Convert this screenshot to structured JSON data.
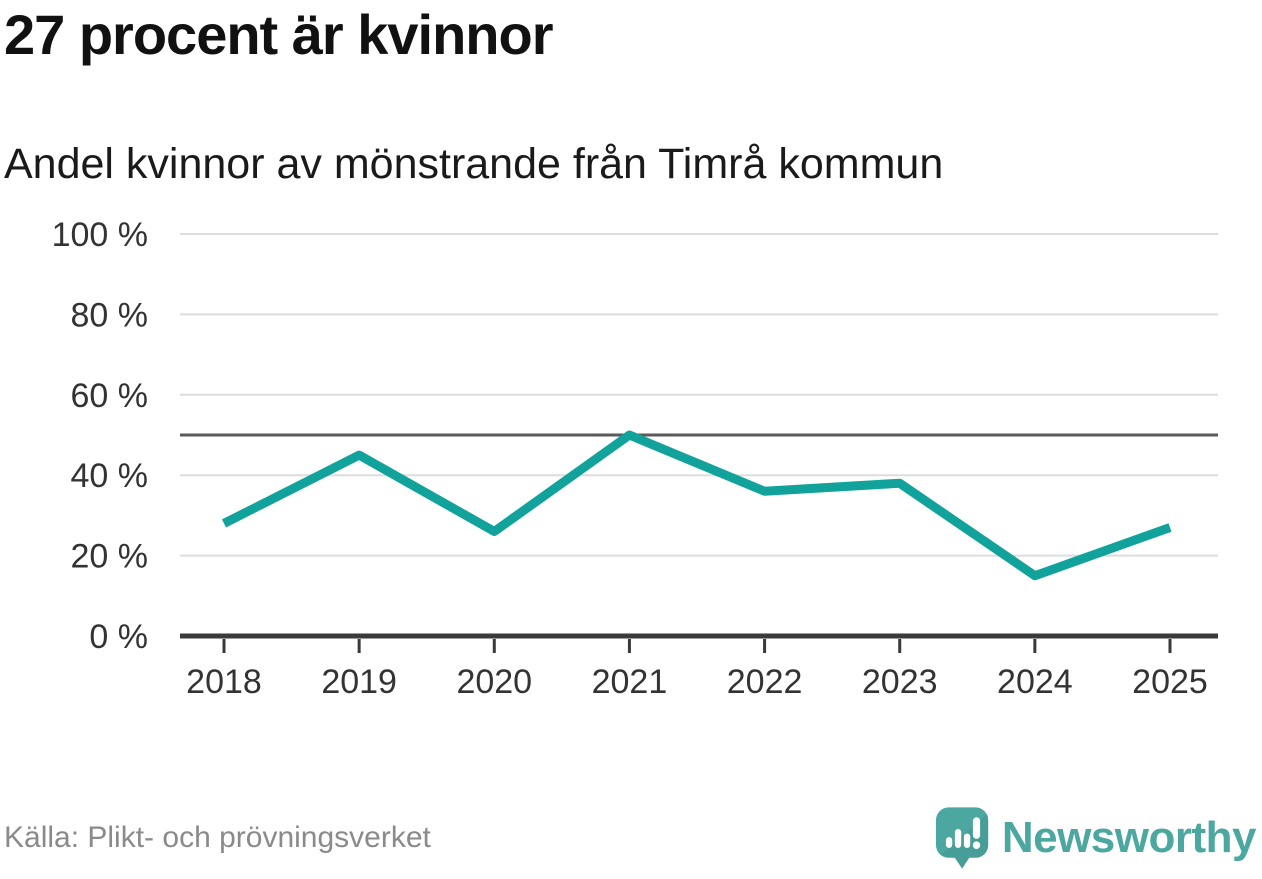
{
  "header": {
    "title": "27 procent är kvinnor",
    "subtitle": "Andel kvinnor av mönstrande från Timrå kommun"
  },
  "chart_data": {
    "type": "line",
    "title": "27 procent är kvinnor",
    "subtitle": "Andel kvinnor av mönstrande från Timrå kommun",
    "categories": [
      "2018",
      "2019",
      "2020",
      "2021",
      "2022",
      "2023",
      "2024",
      "2025"
    ],
    "series": [
      {
        "name": "Andel kvinnor av mönstrande",
        "values": [
          28,
          45,
          26,
          50,
          36,
          38,
          15,
          27
        ]
      }
    ],
    "unit": "%",
    "ylim": [
      0,
      100
    ],
    "yticks": [
      0,
      20,
      40,
      60,
      80,
      100
    ],
    "ytick_labels": [
      "0 %",
      "20 %",
      "40 %",
      "60 %",
      "80 %",
      "100 %"
    ],
    "reference_line": 50,
    "grid": true,
    "legend": false,
    "xlabel": "",
    "ylabel": ""
  },
  "footer": {
    "source": "Källa: Plikt- och prövningsverket",
    "brand": "Newsworthy"
  },
  "colors": {
    "line": "#11a39b",
    "grid": "#dddddd",
    "axis": "#3a3a3a",
    "reference": "#5a5a5a",
    "tick_text": "#333333",
    "title_text": "#111111",
    "subtitle_text": "#1a1a1a",
    "source_text": "#8a8a8a",
    "brand": "#4ca7a1",
    "icon_glyphs": "#ffffff"
  }
}
